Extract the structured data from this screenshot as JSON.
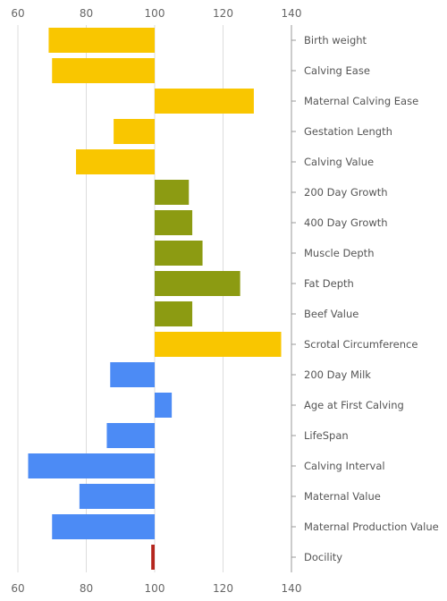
{
  "chart_data": {
    "type": "bar",
    "orientation": "horizontal",
    "xlim": [
      60,
      140
    ],
    "x_ticks": [
      "60",
      "80",
      "100",
      "120",
      "140"
    ],
    "axis_position": "top-and-bottom",
    "category_axis_position": "right",
    "grid": true,
    "baseline": 100,
    "categories": [
      "Birth weight",
      "Calving Ease",
      "Maternal Calving Ease",
      "Gestation Length",
      "Calving Value",
      "200 Day Growth",
      "400 Day Growth",
      "Muscle Depth",
      "Fat Depth",
      "Beef Value",
      "Scrotal Circumference",
      "200 Day Milk",
      "Age at First Calving",
      "LifeSpan",
      "Calving Interval",
      "Maternal Value",
      "Maternal Production Value",
      "Docility"
    ],
    "values": [
      69,
      70,
      129,
      88,
      77,
      110,
      111,
      114,
      125,
      111,
      137,
      87,
      105,
      86,
      63,
      78,
      70,
      99
    ],
    "colors": [
      "#f9c600",
      "#f9c600",
      "#f9c600",
      "#f9c600",
      "#f9c600",
      "#8c9b12",
      "#8c9b12",
      "#8c9b12",
      "#8c9b12",
      "#8c9b12",
      "#f9c600",
      "#4c8bf5",
      "#4c8bf5",
      "#4c8bf5",
      "#4c8bf5",
      "#4c8bf5",
      "#4c8bf5",
      "#b5261e"
    ]
  }
}
